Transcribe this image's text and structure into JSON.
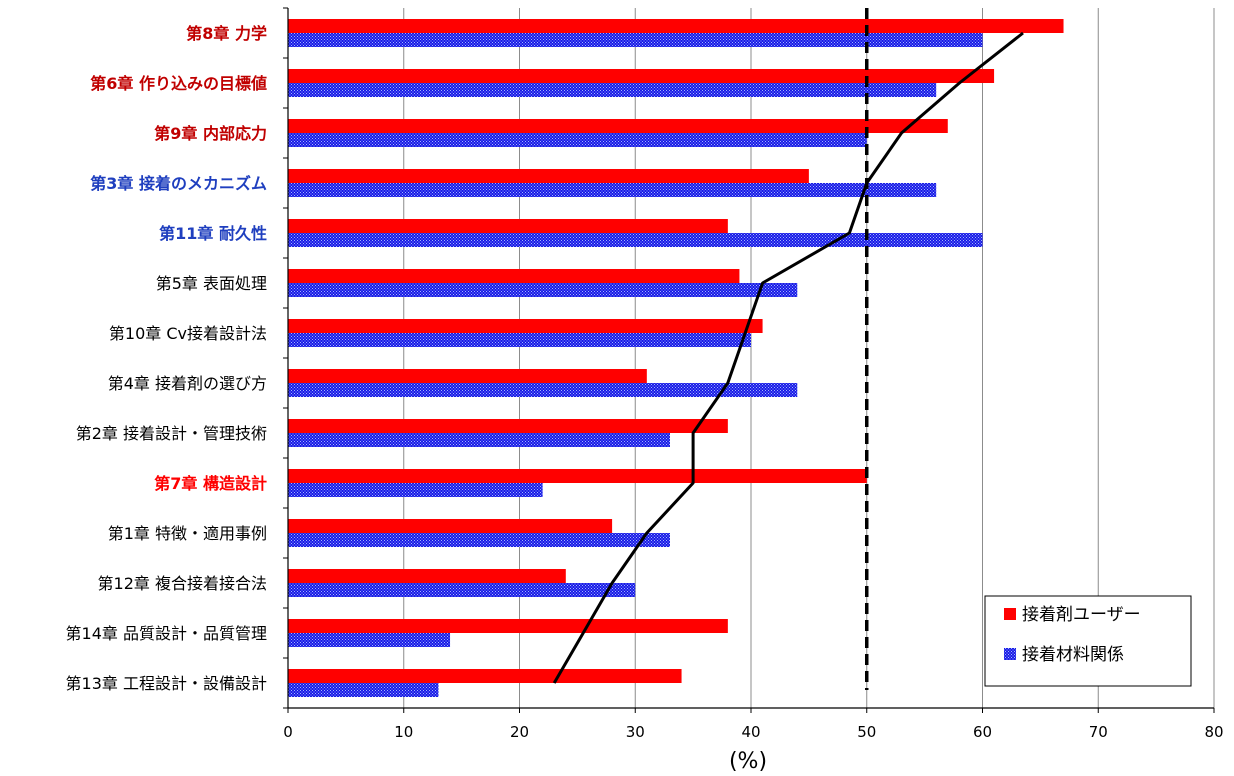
{
  "chart_data": {
    "type": "bar",
    "orientation": "horizontal",
    "xlabel": "(%)",
    "xlim": [
      0,
      80
    ],
    "xticks": [
      0,
      10,
      20,
      30,
      40,
      50,
      60,
      70,
      80
    ],
    "grid": true,
    "legend_position": "bottom-right",
    "reference_line": {
      "x": 50,
      "style": "dashed"
    },
    "categories": [
      {
        "label": "第8章 力学",
        "color": "#c00000",
        "bold": true
      },
      {
        "label": "第6章 作り込みの目標値",
        "color": "#c00000",
        "bold": true
      },
      {
        "label": "第9章 内部応力",
        "color": "#c00000",
        "bold": true
      },
      {
        "label": "第3章 接着のメカニズム",
        "color": "#1f3fbf",
        "bold": true
      },
      {
        "label": "第11章 耐久性",
        "color": "#1f3fbf",
        "bold": true
      },
      {
        "label": "第5章 表面処理",
        "color": "#000000",
        "bold": false
      },
      {
        "label": "第10章 Cv接着設計法",
        "color": "#000000",
        "bold": false
      },
      {
        "label": "第4章 接着剤の選び方",
        "color": "#000000",
        "bold": false
      },
      {
        "label": "第2章 接着設計・管理技術",
        "color": "#000000",
        "bold": false
      },
      {
        "label": "第7章 構造設計",
        "color": "#ff0000",
        "bold": true
      },
      {
        "label": "第1章 特徴・適用事例",
        "color": "#000000",
        "bold": false
      },
      {
        "label": "第12章 複合接着接合法",
        "color": "#000000",
        "bold": false
      },
      {
        "label": "第14章 品質設計・品質管理",
        "color": "#000000",
        "bold": false
      },
      {
        "label": "第13章 工程設計・設備設計",
        "color": "#000000",
        "bold": false,
        "small": true
      }
    ],
    "series": [
      {
        "name": "接着剤ユーザー",
        "color": "#ff0000",
        "pattern": "solid",
        "values": [
          67,
          61,
          57,
          45,
          38,
          39,
          41,
          31,
          38,
          50,
          28,
          24,
          38,
          34
        ]
      },
      {
        "name": "接着材料関係",
        "color": "#1f1fe0",
        "pattern": "dotted",
        "values": [
          60,
          56,
          50,
          56,
          60,
          44,
          40,
          44,
          33,
          22,
          33,
          30,
          14,
          13
        ]
      }
    ],
    "trend_line": {
      "points": [
        [
          63.5,
          0
        ],
        [
          58,
          1
        ],
        [
          53,
          2
        ],
        [
          50,
          3
        ],
        [
          48.5,
          4
        ],
        [
          41,
          5
        ],
        [
          39.5,
          6
        ],
        [
          38,
          7
        ],
        [
          35,
          8
        ],
        [
          35,
          9
        ],
        [
          31,
          10
        ],
        [
          28,
          11
        ],
        [
          25.5,
          12
        ],
        [
          23,
          13
        ]
      ]
    }
  }
}
